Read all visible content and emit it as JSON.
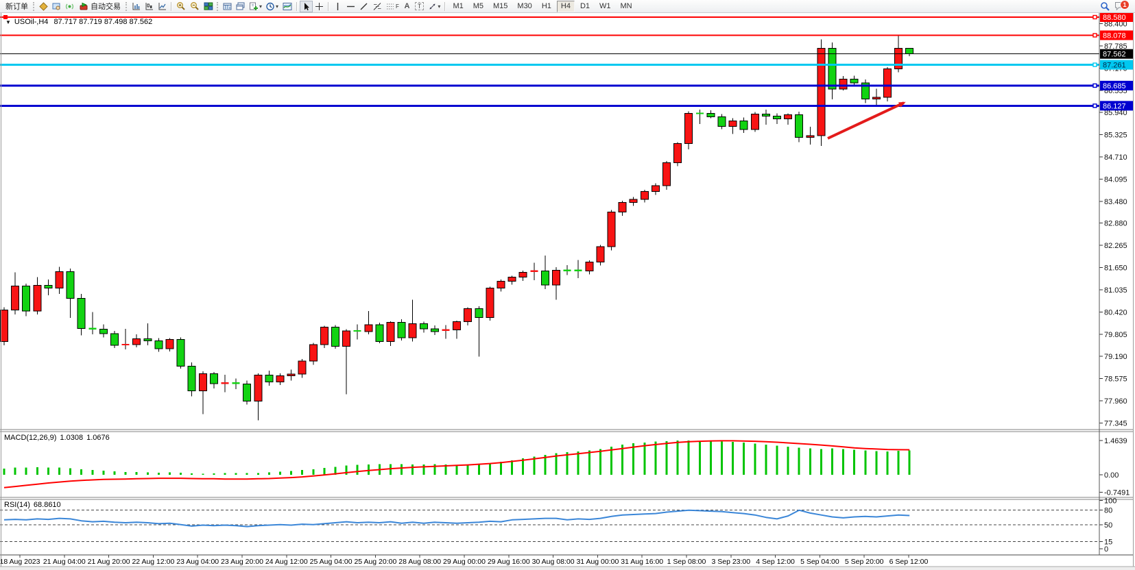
{
  "toolbar": {
    "new_order": "新订单",
    "auto_trading": "自动交易",
    "timeframes": [
      "M1",
      "M5",
      "M15",
      "M30",
      "H1",
      "H4",
      "D1",
      "W1",
      "MN"
    ],
    "active_timeframe": "H4",
    "notification_badge": "1",
    "text_icon_label": "A",
    "label_icon_label": "T",
    "channel_icon_label": "F"
  },
  "chart": {
    "title": "USOil-,H4",
    "ohlc_text": "87.717 87.719 87.498 87.562",
    "price_ticks": [
      {
        "value": 88.4,
        "label": "88.400"
      },
      {
        "value": 87.785,
        "label": "87.785"
      },
      {
        "value": 87.17,
        "label": "87.170"
      },
      {
        "value": 86.555,
        "label": "86.555"
      },
      {
        "value": 85.94,
        "label": "85.940"
      },
      {
        "value": 85.325,
        "label": "85.325"
      },
      {
        "value": 84.71,
        "label": "84.710"
      },
      {
        "value": 84.095,
        "label": "84.095"
      },
      {
        "value": 83.48,
        "label": "83.480"
      },
      {
        "value": 82.88,
        "label": "82.880"
      },
      {
        "value": 82.265,
        "label": "82.265"
      },
      {
        "value": 81.65,
        "label": "81.650"
      },
      {
        "value": 81.035,
        "label": "81.035"
      },
      {
        "value": 80.42,
        "label": "80.420"
      },
      {
        "value": 79.805,
        "label": "79.805"
      },
      {
        "value": 79.19,
        "label": "79.190"
      },
      {
        "value": 78.575,
        "label": "78.575"
      },
      {
        "value": 77.96,
        "label": "77.960"
      },
      {
        "value": 77.345,
        "label": "77.345"
      }
    ],
    "hlines": [
      {
        "price": 88.58,
        "label": "88.580",
        "color": "#fe0000",
        "text_color": "#ffffff",
        "width": 2
      },
      {
        "price": 88.078,
        "label": "88.078",
        "color": "#fe0000",
        "text_color": "#ffffff",
        "width": 2
      },
      {
        "price": 87.261,
        "label": "87.261",
        "color": "#00c8f0",
        "text_color": "#00284a",
        "width": 3
      },
      {
        "price": 86.685,
        "label": "86.685",
        "color": "#0000d0",
        "text_color": "#ffffff",
        "width": 3
      },
      {
        "price": 86.127,
        "label": "86.127",
        "color": "#0000d0",
        "text_color": "#ffffff",
        "width": 3
      }
    ],
    "current_price": {
      "value": 87.562,
      "label": "87.562",
      "color": "#000000",
      "text_color": "#ffffff"
    },
    "time_labels": [
      "18 Aug 2023",
      "21 Aug 04:00",
      "21 Aug 20:00",
      "22 Aug 12:00",
      "23 Aug 04:00",
      "23 Aug 20:00",
      "24 Aug 12:00",
      "25 Aug 04:00",
      "25 Aug 20:00",
      "28 Aug 08:00",
      "29 Aug 00:00",
      "29 Aug 16:00",
      "30 Aug 08:00",
      "31 Aug 00:00",
      "31 Aug 16:00",
      "1 Sep 08:00",
      "3 Sep 23:00",
      "4 Sep 12:00",
      "5 Sep 04:00",
      "5 Sep 20:00",
      "6 Sep 12:00"
    ],
    "bull_color": "#f81414",
    "bear_color": "#12d312",
    "arrow_color": "#e31b1b"
  },
  "macd": {
    "title": "MACD(12,26,9)",
    "main_value": "1.0308",
    "signal_value": "1.0676",
    "axis_labels": [
      {
        "value": 1.4639,
        "label": "1.4639"
      },
      {
        "value": 0.0,
        "label": "0.00"
      },
      {
        "value": -0.7491,
        "label": "-0.7491"
      }
    ],
    "histogram_color": "#00c400",
    "signal_color": "#ff0000"
  },
  "rsi": {
    "title": "RSI(14)",
    "value": "68.8610",
    "axis_labels": [
      {
        "value": 100,
        "label": "100"
      },
      {
        "value": 80,
        "label": "80"
      },
      {
        "value": 50,
        "label": "50"
      },
      {
        "value": 15,
        "label": "15"
      },
      {
        "value": 0,
        "label": "0"
      }
    ],
    "levels": [
      80,
      50,
      15
    ],
    "line_color": "#3a86d8"
  },
  "chart_data": {
    "type": "candlestick",
    "symbol": "USOil-",
    "timeframe": "H4",
    "ohlc_last": {
      "open": 87.717,
      "high": 87.719,
      "low": 87.498,
      "close": 87.562
    },
    "candles_ohlc": [
      [
        79.6,
        80.55,
        79.5,
        80.47
      ],
      [
        80.47,
        81.52,
        80.35,
        81.14
      ],
      [
        81.14,
        81.2,
        80.3,
        80.45
      ],
      [
        80.45,
        81.38,
        80.35,
        81.16
      ],
      [
        81.16,
        81.32,
        80.88,
        81.08
      ],
      [
        81.08,
        81.67,
        80.92,
        81.54
      ],
      [
        81.54,
        81.62,
        80.26,
        80.8
      ],
      [
        80.8,
        80.92,
        79.77,
        79.96
      ],
      [
        79.96,
        80.42,
        79.8,
        79.94
      ],
      [
        79.94,
        80.08,
        79.72,
        79.82
      ],
      [
        79.82,
        79.9,
        79.42,
        79.5
      ],
      [
        79.5,
        79.95,
        79.38,
        79.52
      ],
      [
        79.52,
        79.8,
        79.44,
        79.68
      ],
      [
        79.68,
        80.1,
        79.5,
        79.62
      ],
      [
        79.62,
        79.7,
        79.32,
        79.4
      ],
      [
        79.4,
        79.7,
        79.33,
        79.66
      ],
      [
        79.66,
        79.72,
        78.85,
        78.92
      ],
      [
        78.92,
        79.02,
        78.08,
        78.24
      ],
      [
        78.24,
        78.78,
        77.59,
        78.71
      ],
      [
        78.71,
        78.76,
        78.3,
        78.44
      ],
      [
        78.44,
        78.68,
        78.2,
        78.45
      ],
      [
        78.45,
        78.58,
        78.28,
        78.43
      ],
      [
        78.43,
        78.52,
        77.86,
        77.95
      ],
      [
        77.95,
        78.72,
        77.42,
        78.67
      ],
      [
        78.67,
        78.8,
        78.38,
        78.48
      ],
      [
        78.48,
        78.72,
        78.4,
        78.65
      ],
      [
        78.65,
        78.82,
        78.52,
        78.7
      ],
      [
        78.7,
        79.12,
        78.6,
        79.06
      ],
      [
        79.06,
        79.56,
        78.96,
        79.52
      ],
      [
        79.52,
        80.04,
        79.42,
        80.0
      ],
      [
        80.0,
        80.06,
        79.4,
        79.47
      ],
      [
        79.47,
        79.94,
        78.14,
        79.9
      ],
      [
        79.9,
        80.08,
        79.66,
        79.88
      ],
      [
        79.88,
        80.45,
        79.8,
        80.07
      ],
      [
        80.07,
        80.12,
        79.55,
        79.6
      ],
      [
        79.6,
        80.16,
        79.48,
        80.13
      ],
      [
        80.13,
        80.22,
        79.63,
        79.71
      ],
      [
        79.71,
        80.76,
        79.6,
        80.09
      ],
      [
        80.09,
        80.15,
        79.85,
        79.95
      ],
      [
        79.95,
        80.05,
        79.78,
        79.88
      ],
      [
        79.88,
        80.06,
        79.68,
        79.92
      ],
      [
        79.92,
        80.18,
        79.68,
        80.15
      ],
      [
        80.15,
        80.55,
        80.05,
        80.51
      ],
      [
        80.51,
        80.58,
        79.18,
        80.27
      ],
      [
        80.27,
        81.12,
        80.18,
        81.08
      ],
      [
        81.08,
        81.32,
        80.99,
        81.27
      ],
      [
        81.27,
        81.42,
        81.18,
        81.38
      ],
      [
        81.38,
        81.56,
        81.28,
        81.52
      ],
      [
        81.52,
        81.78,
        81.3,
        81.55
      ],
      [
        81.55,
        81.98,
        81.05,
        81.17
      ],
      [
        81.17,
        81.66,
        80.76,
        81.57
      ],
      [
        81.57,
        81.72,
        81.44,
        81.55
      ],
      [
        81.57,
        81.86,
        81.36,
        81.55
      ],
      [
        81.55,
        81.85,
        81.46,
        81.8
      ],
      [
        81.8,
        82.28,
        81.71,
        82.23
      ],
      [
        82.23,
        83.24,
        82.12,
        83.19
      ],
      [
        83.19,
        83.5,
        83.08,
        83.45
      ],
      [
        83.45,
        83.6,
        83.36,
        83.54
      ],
      [
        83.54,
        83.8,
        83.45,
        83.75
      ],
      [
        83.75,
        83.98,
        83.66,
        83.92
      ],
      [
        83.92,
        84.6,
        83.8,
        84.55
      ],
      [
        84.55,
        85.12,
        84.46,
        85.08
      ],
      [
        85.08,
        85.97,
        84.92,
        85.92
      ],
      [
        85.92,
        86.02,
        85.62,
        85.88
      ],
      [
        85.92,
        86.0,
        85.78,
        85.82
      ],
      [
        85.82,
        85.9,
        85.48,
        85.56
      ],
      [
        85.56,
        85.78,
        85.35,
        85.71
      ],
      [
        85.71,
        85.8,
        85.38,
        85.47
      ],
      [
        85.47,
        85.95,
        85.4,
        85.9
      ],
      [
        85.9,
        86.02,
        85.6,
        85.84
      ],
      [
        85.84,
        85.92,
        85.62,
        85.76
      ],
      [
        85.76,
        85.92,
        85.6,
        85.88
      ],
      [
        85.88,
        85.96,
        85.12,
        85.25
      ],
      [
        85.25,
        85.55,
        85.05,
        85.3
      ],
      [
        85.3,
        87.96,
        85.02,
        87.72
      ],
      [
        87.72,
        87.88,
        86.3,
        86.59
      ],
      [
        86.59,
        86.95,
        86.55,
        86.86
      ],
      [
        86.86,
        86.96,
        86.7,
        86.76
      ],
      [
        86.76,
        86.85,
        86.2,
        86.31
      ],
      [
        86.31,
        86.6,
        86.1,
        86.36
      ],
      [
        86.36,
        87.2,
        86.25,
        87.15
      ],
      [
        87.15,
        88.1,
        87.05,
        87.72
      ],
      [
        87.717,
        87.719,
        87.498,
        87.562
      ]
    ],
    "macd_histogram": [
      0.27,
      0.3,
      0.31,
      0.32,
      0.31,
      0.3,
      0.28,
      0.24,
      0.2,
      0.17,
      0.14,
      0.12,
      0.11,
      0.1,
      0.09,
      0.1,
      0.09,
      0.06,
      0.05,
      0.06,
      0.07,
      0.08,
      0.07,
      0.08,
      0.1,
      0.13,
      0.16,
      0.2,
      0.24,
      0.29,
      0.34,
      0.39,
      0.42,
      0.44,
      0.45,
      0.46,
      0.45,
      0.44,
      0.44,
      0.45,
      0.44,
      0.43,
      0.44,
      0.46,
      0.5,
      0.55,
      0.62,
      0.7,
      0.78,
      0.85,
      0.92,
      0.97,
      1.0,
      1.04,
      1.1,
      1.2,
      1.28,
      1.34,
      1.38,
      1.42,
      1.44,
      1.4639,
      1.46,
      1.45,
      1.44,
      1.42,
      1.4,
      1.37,
      1.33,
      1.28,
      1.24,
      1.2,
      1.16,
      1.12,
      1.1,
      1.12,
      1.1,
      1.07,
      1.04,
      1.01,
      1.0,
      1.02,
      1.0308
    ],
    "macd_signal": [
      -0.55,
      -0.5,
      -0.45,
      -0.4,
      -0.35,
      -0.31,
      -0.27,
      -0.24,
      -0.22,
      -0.2,
      -0.19,
      -0.18,
      -0.17,
      -0.16,
      -0.15,
      -0.15,
      -0.15,
      -0.16,
      -0.17,
      -0.17,
      -0.18,
      -0.18,
      -0.18,
      -0.17,
      -0.16,
      -0.14,
      -0.12,
      -0.09,
      -0.05,
      -0.01,
      0.04,
      0.09,
      0.14,
      0.18,
      0.22,
      0.26,
      0.29,
      0.32,
      0.34,
      0.36,
      0.38,
      0.4,
      0.42,
      0.45,
      0.48,
      0.52,
      0.57,
      0.62,
      0.68,
      0.74,
      0.8,
      0.85,
      0.9,
      0.95,
      1.0,
      1.06,
      1.12,
      1.18,
      1.24,
      1.29,
      1.34,
      1.38,
      1.41,
      1.43,
      1.445,
      1.45,
      1.45,
      1.44,
      1.43,
      1.41,
      1.39,
      1.36,
      1.33,
      1.3,
      1.27,
      1.23,
      1.19,
      1.15,
      1.12,
      1.1,
      1.08,
      1.07,
      1.0676
    ],
    "rsi_line": [
      60,
      61,
      60,
      62,
      61,
      63,
      62,
      58,
      56,
      57,
      55,
      54,
      55,
      54,
      52,
      53,
      50,
      47,
      49,
      48,
      49,
      48,
      46,
      48,
      49,
      50,
      49,
      51,
      50,
      52,
      54,
      56,
      54,
      55,
      54,
      56,
      53,
      55,
      53,
      55,
      54,
      53,
      54,
      55,
      57,
      56,
      60,
      61,
      62,
      63,
      63,
      60,
      62,
      61,
      63,
      67,
      70,
      71,
      72,
      73,
      76,
      78,
      80,
      79,
      78,
      77,
      75,
      73,
      70,
      65,
      62,
      68,
      80,
      74,
      70,
      66,
      64,
      66,
      67,
      66,
      68,
      70,
      68.86
    ]
  }
}
